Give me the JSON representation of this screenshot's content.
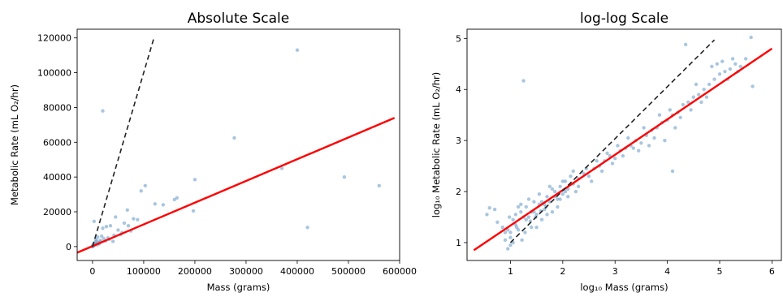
{
  "chart_data": [
    {
      "type": "scatter",
      "title": "Absolute Scale",
      "xlabel": "Mass (grams)",
      "ylabel": "Metabolic Rate (mL O₂/hr)",
      "xlim": [
        -30000,
        600000
      ],
      "ylim": [
        -8000,
        125000
      ],
      "xticks": [
        0,
        100000,
        200000,
        300000,
        400000,
        500000,
        600000
      ],
      "yticks": [
        0,
        20000,
        40000,
        60000,
        80000,
        100000,
        120000
      ],
      "xtick_labels": [
        "0",
        "100000",
        "200000",
        "300000",
        "400000",
        "500000",
        "600000"
      ],
      "ytick_labels": [
        "0",
        "20000",
        "40000",
        "60000",
        "80000",
        "100000",
        "120000"
      ],
      "grid": false,
      "point_color": "#7ba7cc",
      "points": [
        [
          3000,
          14500
        ],
        [
          20000,
          78000
        ],
        [
          400000,
          113000
        ],
        [
          277000,
          62500
        ],
        [
          200000,
          38500
        ],
        [
          560000,
          35000
        ],
        [
          492000,
          40000
        ],
        [
          420000,
          11000
        ],
        [
          370000,
          45000
        ],
        [
          197000,
          20500
        ],
        [
          160000,
          27000
        ],
        [
          165000,
          28000
        ],
        [
          103000,
          35000
        ],
        [
          95000,
          32000
        ],
        [
          122000,
          24500
        ],
        [
          138000,
          24000
        ],
        [
          68000,
          21000
        ],
        [
          62000,
          13500
        ],
        [
          45000,
          17000
        ],
        [
          35000,
          12000
        ],
        [
          27000,
          11500
        ],
        [
          20000,
          10500
        ],
        [
          80000,
          16000
        ],
        [
          75000,
          9000
        ],
        [
          58000,
          8000
        ],
        [
          50000,
          9500
        ],
        [
          42000,
          6500
        ],
        [
          40000,
          3000
        ],
        [
          30000,
          5000
        ],
        [
          22000,
          4500
        ],
        [
          18000,
          6000
        ],
        [
          15000,
          3500
        ],
        [
          12000,
          2000
        ],
        [
          10000,
          5500
        ],
        [
          8000,
          3000
        ],
        [
          6000,
          1500
        ],
        [
          5000,
          2500
        ],
        [
          4000,
          800
        ],
        [
          3000,
          1200
        ],
        [
          2000,
          500
        ],
        [
          1500,
          900
        ],
        [
          1000,
          300
        ],
        [
          800,
          200
        ],
        [
          600,
          600
        ],
        [
          500,
          150
        ],
        [
          300,
          400
        ],
        [
          200,
          100
        ],
        [
          100,
          50
        ],
        [
          50,
          30
        ],
        [
          2500,
          1800
        ],
        [
          7000,
          4000
        ],
        [
          9000,
          1000
        ],
        [
          11000,
          2200
        ],
        [
          13000,
          1600
        ],
        [
          16000,
          2800
        ],
        [
          25000,
          3200
        ],
        [
          33000,
          4200
        ],
        [
          55000,
          7000
        ],
        [
          70000,
          12000
        ],
        [
          88000,
          15500
        ]
      ],
      "lines": [
        {
          "style": "solid",
          "color": "#ff0000",
          "x": [
            -30000,
            590000
          ],
          "y": [
            -3500,
            74000
          ]
        },
        {
          "style": "dashed",
          "color": "#222222",
          "x": [
            0,
            120000
          ],
          "y": [
            0,
            120000
          ]
        }
      ]
    },
    {
      "type": "scatter",
      "title": "log-log Scale",
      "xlabel": "log₁₀ Mass (grams)",
      "ylabel": "log₁₀ Metabolic Rate (mL O₂/hr)",
      "xlim": [
        0.17,
        6.18
      ],
      "ylim": [
        0.65,
        5.18
      ],
      "xticks": [
        1,
        2,
        3,
        4,
        5,
        6
      ],
      "yticks": [
        1,
        2,
        3,
        4,
        5
      ],
      "xtick_labels": [
        "1",
        "2",
        "3",
        "4",
        "5",
        "6"
      ],
      "ytick_labels": [
        "1",
        "2",
        "3",
        "4",
        "5"
      ],
      "grid": false,
      "point_color": "#7ba7cc",
      "points": [
        [
          1.25,
          4.17
        ],
        [
          4.35,
          4.88
        ],
        [
          5.6,
          5.02
        ],
        [
          5.63,
          4.06
        ],
        [
          4.1,
          2.4
        ],
        [
          0.55,
          1.55
        ],
        [
          0.6,
          1.68
        ],
        [
          0.7,
          1.65
        ],
        [
          0.75,
          1.4
        ],
        [
          0.85,
          1.3
        ],
        [
          0.9,
          1.05
        ],
        [
          0.95,
          0.88
        ],
        [
          0.98,
          1.5
        ],
        [
          1.0,
          1.2
        ],
        [
          1.05,
          1.45
        ],
        [
          1.1,
          1.35
        ],
        [
          1.15,
          1.25
        ],
        [
          1.2,
          1.6
        ],
        [
          1.22,
          1.05
        ],
        [
          1.3,
          1.7
        ],
        [
          1.35,
          1.5
        ],
        [
          1.4,
          1.3
        ],
        [
          1.45,
          1.8
        ],
        [
          1.5,
          1.55
        ],
        [
          1.55,
          1.75
        ],
        [
          1.6,
          1.45
        ],
        [
          1.65,
          1.65
        ],
        [
          1.7,
          1.9
        ],
        [
          1.75,
          1.8
        ],
        [
          1.8,
          1.6
        ],
        [
          1.85,
          2.0
        ],
        [
          1.9,
          1.85
        ],
        [
          1.95,
          2.1
        ],
        [
          2.0,
          1.95
        ],
        [
          2.05,
          2.2
        ],
        [
          2.1,
          2.05
        ],
        [
          2.15,
          2.3
        ],
        [
          2.2,
          2.15
        ],
        [
          2.25,
          2.0
        ],
        [
          2.3,
          2.25
        ],
        [
          2.4,
          2.35
        ],
        [
          2.5,
          2.3
        ],
        [
          2.6,
          2.45
        ],
        [
          2.7,
          2.5
        ],
        [
          2.8,
          2.6
        ],
        [
          2.9,
          2.7
        ],
        [
          3.0,
          2.65
        ],
        [
          3.1,
          2.8
        ],
        [
          3.2,
          2.85
        ],
        [
          3.3,
          2.9
        ],
        [
          3.4,
          3.0
        ],
        [
          3.5,
          2.95
        ],
        [
          3.6,
          3.1
        ],
        [
          3.7,
          3.2
        ],
        [
          3.8,
          3.25
        ],
        [
          3.9,
          3.35
        ],
        [
          4.0,
          3.4
        ],
        [
          4.1,
          3.5
        ],
        [
          4.2,
          3.55
        ],
        [
          4.3,
          3.7
        ],
        [
          4.4,
          3.75
        ],
        [
          4.5,
          3.85
        ],
        [
          4.6,
          3.9
        ],
        [
          4.7,
          4.0
        ],
        [
          4.8,
          4.1
        ],
        [
          4.9,
          4.2
        ],
        [
          5.0,
          4.3
        ],
        [
          5.1,
          4.35
        ],
        [
          5.2,
          4.4
        ],
        [
          5.3,
          4.5
        ],
        [
          5.4,
          4.45
        ],
        [
          5.5,
          4.6
        ],
        [
          3.45,
          2.8
        ],
        [
          3.55,
          3.25
        ],
        [
          3.65,
          2.9
        ],
        [
          3.75,
          3.05
        ],
        [
          3.85,
          3.5
        ],
        [
          3.95,
          3.0
        ],
        [
          4.05,
          3.6
        ],
        [
          4.15,
          3.25
        ],
        [
          4.25,
          3.45
        ],
        [
          4.45,
          3.6
        ],
        [
          4.55,
          4.1
        ],
        [
          4.65,
          3.75
        ],
        [
          4.75,
          3.85
        ],
        [
          4.85,
          4.45
        ],
        [
          5.05,
          4.55
        ],
        [
          5.15,
          4.2
        ],
        [
          5.25,
          4.6
        ],
        [
          5.35,
          4.35
        ],
        [
          4.95,
          4.5
        ],
        [
          1.0,
          0.95
        ],
        [
          1.1,
          1.55
        ],
        [
          1.2,
          1.75
        ],
        [
          1.3,
          1.45
        ],
        [
          1.4,
          1.6
        ],
        [
          1.5,
          1.3
        ],
        [
          1.6,
          1.8
        ],
        [
          1.7,
          1.55
        ],
        [
          1.8,
          2.05
        ],
        [
          1.9,
          1.7
        ],
        [
          2.0,
          2.2
        ],
        [
          2.1,
          1.9
        ],
        [
          2.2,
          2.4
        ],
        [
          2.3,
          2.1
        ],
        [
          2.45,
          2.45
        ],
        [
          2.55,
          2.2
        ],
        [
          2.65,
          2.6
        ],
        [
          2.75,
          2.4
        ],
        [
          2.85,
          2.75
        ],
        [
          2.95,
          2.55
        ],
        [
          3.05,
          2.9
        ],
        [
          3.15,
          2.7
        ],
        [
          3.25,
          3.05
        ],
        [
          3.35,
          2.85
        ],
        [
          1.15,
          1.7
        ],
        [
          1.25,
          1.5
        ],
        [
          1.35,
          1.85
        ],
        [
          1.45,
          1.6
        ],
        [
          1.55,
          1.95
        ],
        [
          1.65,
          1.75
        ],
        [
          1.75,
          2.1
        ],
        [
          1.85,
          1.9
        ],
        [
          1.95,
          1.85
        ],
        [
          2.05,
          2.0
        ],
        [
          1.0,
          1.1
        ],
        [
          0.95,
          1.25
        ],
        [
          1.05,
          1.0
        ],
        [
          0.9,
          1.2
        ],
        [
          1.12,
          1.3
        ],
        [
          1.28,
          1.2
        ],
        [
          1.38,
          1.42
        ],
        [
          1.48,
          1.5
        ],
        [
          1.58,
          1.62
        ],
        [
          1.68,
          1.7
        ]
      ],
      "lines": [
        {
          "style": "solid",
          "color": "#ff0000",
          "x": [
            0.3,
            6.0
          ],
          "y": [
            0.85,
            4.8
          ]
        },
        {
          "style": "dashed",
          "color": "#222222",
          "x": [
            1.0,
            4.9
          ],
          "y": [
            1.0,
            4.97
          ]
        }
      ]
    }
  ]
}
